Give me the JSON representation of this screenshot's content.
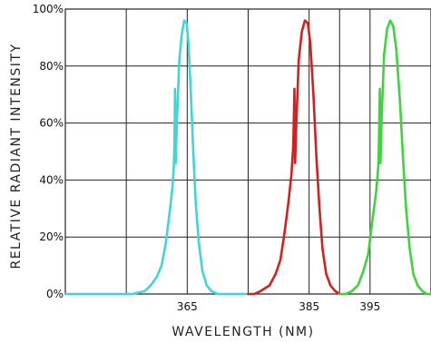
{
  "chart_data": {
    "type": "line",
    "title": "",
    "xlabel": "WAVELENGTH (NM)",
    "ylabel": "RELATIVE RADIANT INTENSITY",
    "xlim": [
      345,
      405
    ],
    "ylim": [
      0,
      100
    ],
    "x_ticks": [
      365,
      385,
      395
    ],
    "x_gridlines": [
      355,
      365,
      375,
      385,
      390,
      395
    ],
    "y_ticks": [
      0,
      20,
      40,
      60,
      80,
      100
    ],
    "y_tick_labels": [
      "0%",
      "20%",
      "40%",
      "60%",
      "80%",
      "100%"
    ],
    "grid": true,
    "series": [
      {
        "color": "#3fd6d8",
        "points": [
          [
            345,
            0
          ],
          [
            356,
            0
          ],
          [
            358,
            1
          ],
          [
            359,
            3
          ],
          [
            360,
            6
          ],
          [
            360.8,
            10
          ],
          [
            361.5,
            18
          ],
          [
            362.2,
            30
          ],
          [
            362.6,
            38
          ],
          [
            362.8,
            45
          ],
          [
            362.9,
            52
          ],
          [
            363.0,
            72
          ],
          [
            363.1,
            46
          ],
          [
            363.3,
            60
          ],
          [
            363.7,
            82
          ],
          [
            364.1,
            91
          ],
          [
            364.5,
            96
          ],
          [
            364.9,
            95
          ],
          [
            365.2,
            88
          ],
          [
            365.6,
            70
          ],
          [
            366.0,
            50
          ],
          [
            366.4,
            32
          ],
          [
            366.9,
            18
          ],
          [
            367.5,
            8
          ],
          [
            368.2,
            3
          ],
          [
            369,
            1
          ],
          [
            370,
            0
          ],
          [
            375,
            0
          ]
        ]
      },
      {
        "color": "#d42020",
        "points": [
          [
            375,
            0
          ],
          [
            376,
            0
          ],
          [
            377,
            1
          ],
          [
            378.5,
            3
          ],
          [
            379.5,
            7
          ],
          [
            380.3,
            12
          ],
          [
            381.0,
            22
          ],
          [
            381.6,
            32
          ],
          [
            382.1,
            42
          ],
          [
            382.4,
            52
          ],
          [
            382.6,
            72
          ],
          [
            382.7,
            46
          ],
          [
            382.9,
            60
          ],
          [
            383.3,
            82
          ],
          [
            383.8,
            92
          ],
          [
            384.3,
            96
          ],
          [
            384.8,
            95
          ],
          [
            385.2,
            88
          ],
          [
            385.7,
            70
          ],
          [
            386.2,
            48
          ],
          [
            386.7,
            30
          ],
          [
            387.2,
            16
          ],
          [
            387.8,
            7
          ],
          [
            388.5,
            3
          ],
          [
            389.3,
            1
          ],
          [
            390,
            0
          ]
        ]
      },
      {
        "color": "#3ed43e",
        "points": [
          [
            390,
            0
          ],
          [
            391,
            0
          ],
          [
            392,
            1
          ],
          [
            393,
            3
          ],
          [
            393.9,
            8
          ],
          [
            394.7,
            14
          ],
          [
            395.4,
            26
          ],
          [
            396.0,
            36
          ],
          [
            396.4,
            46
          ],
          [
            396.6,
            72
          ],
          [
            396.7,
            46
          ],
          [
            396.9,
            62
          ],
          [
            397.3,
            84
          ],
          [
            397.8,
            93
          ],
          [
            398.3,
            96
          ],
          [
            398.8,
            94
          ],
          [
            399.3,
            86
          ],
          [
            399.9,
            68
          ],
          [
            400.4,
            48
          ],
          [
            400.9,
            30
          ],
          [
            401.5,
            16
          ],
          [
            402.1,
            7
          ],
          [
            402.8,
            3
          ],
          [
            403.6,
            1
          ],
          [
            404.3,
            0
          ],
          [
            405,
            0
          ]
        ]
      }
    ]
  }
}
